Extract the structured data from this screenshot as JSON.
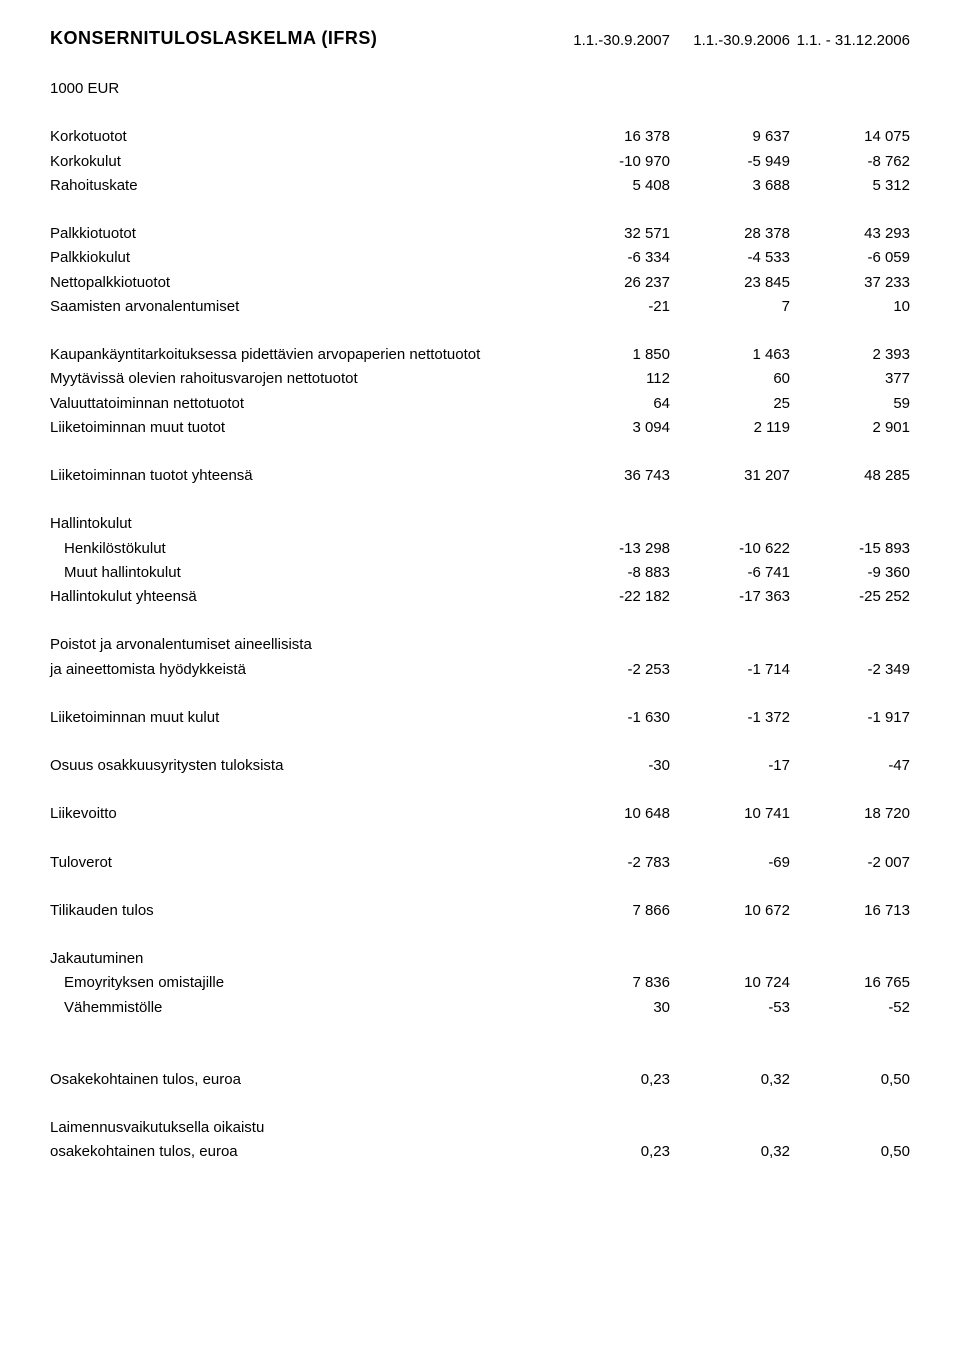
{
  "title": "KONSERNITULOSLASKELMA (IFRS)",
  "periods": [
    "1.1.-30.9.2007",
    "1.1.-30.9.2006",
    "1.1. - 31.12.2006"
  ],
  "unit": "1000 EUR",
  "rows": [
    {
      "label": "Korkotuotot",
      "values": [
        "16 378",
        "9 637",
        "14 075"
      ]
    },
    {
      "label": "Korkokulut",
      "values": [
        "-10 970",
        "-5 949",
        "-8 762"
      ]
    },
    {
      "label": "Rahoituskate",
      "values": [
        "5 408",
        "3 688",
        "5 312"
      ]
    }
  ],
  "rows2": [
    {
      "label": "Palkkiotuotot",
      "values": [
        "32 571",
        "28 378",
        "43 293"
      ]
    },
    {
      "label": "Palkkiokulut",
      "values": [
        "-6 334",
        "-4 533",
        "-6 059"
      ]
    },
    {
      "label": "Nettopalkkiotuotot",
      "values": [
        "26 237",
        "23 845",
        "37 233"
      ]
    },
    {
      "label": "Saamisten arvonalentumiset",
      "values": [
        "-21",
        "7",
        "10"
      ]
    }
  ],
  "rows3": [
    {
      "label": "Kaupankäyntitarkoituksessa pidettävien arvopaperien nettotuotot",
      "values": [
        "1 850",
        "1 463",
        "2 393"
      ]
    },
    {
      "label": "Myytävissä olevien rahoitusvarojen nettotuotot",
      "values": [
        "112",
        "60",
        "377"
      ]
    },
    {
      "label": "Valuuttatoiminnan nettotuotot",
      "values": [
        "64",
        "25",
        "59"
      ]
    },
    {
      "label": "Liiketoiminnan muut tuotot",
      "values": [
        "3 094",
        "2 119",
        "2 901"
      ]
    }
  ],
  "rows4": [
    {
      "label": "Liiketoiminnan tuotot yhteensä",
      "values": [
        "36 743",
        "31 207",
        "48 285"
      ]
    }
  ],
  "hallinto_header": "Hallintokulut",
  "rows5": [
    {
      "label": "Henkilöstökulut",
      "indent": true,
      "values": [
        "-13 298",
        "-10 622",
        "-15 893"
      ]
    },
    {
      "label": "Muut hallintokulut",
      "indent": true,
      "values": [
        "-8 883",
        "-6 741",
        "-9 360"
      ]
    },
    {
      "label": "Hallintokulut yhteensä",
      "values": [
        "-22 182",
        "-17 363",
        "-25 252"
      ]
    }
  ],
  "poistot_lines": [
    "Poistot ja arvonalentumiset aineellisista",
    "ja aineettomista hyödykkeistä"
  ],
  "poistot_values": [
    "-2 253",
    "-1 714",
    "-2 349"
  ],
  "rows6": [
    {
      "label": "Liiketoiminnan muut kulut",
      "values": [
        "-1 630",
        "-1 372",
        "-1 917"
      ]
    }
  ],
  "rows7": [
    {
      "label": "Osuus osakkuusyritysten tuloksista",
      "values": [
        "-30",
        "-17",
        "-47"
      ]
    }
  ],
  "rows8": [
    {
      "label": "Liikevoitto",
      "values": [
        "10 648",
        "10 741",
        "18 720"
      ]
    }
  ],
  "rows9": [
    {
      "label": "Tuloverot",
      "values": [
        "-2 783",
        "-69",
        "-2 007"
      ]
    }
  ],
  "rows10": [
    {
      "label": "Tilikauden tulos",
      "values": [
        "7 866",
        "10 672",
        "16 713"
      ]
    }
  ],
  "jakautuminen_header": "Jakautuminen",
  "rows11": [
    {
      "label": "Emoyrityksen omistajille",
      "indent": true,
      "values": [
        "7 836",
        "10 724",
        "16 765"
      ]
    },
    {
      "label": "Vähemmistölle",
      "indent": true,
      "values": [
        "30",
        "-53",
        "-52"
      ]
    }
  ],
  "rows12": [
    {
      "label": "Osakekohtainen tulos, euroa",
      "values": [
        "0,23",
        "0,32",
        "0,50"
      ]
    }
  ],
  "laimennus_lines": [
    "Laimennusvaikutuksella oikaistu",
    "osakekohtainen tulos, euroa"
  ],
  "laimennus_values": [
    "0,23",
    "0,32",
    "0,50"
  ]
}
